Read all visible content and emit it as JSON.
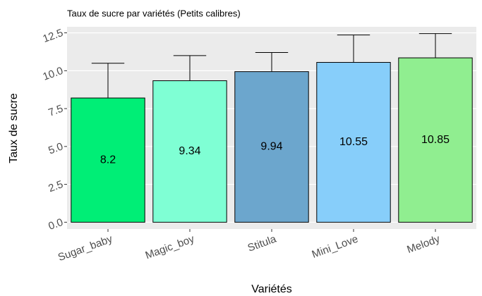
{
  "chart_data": {
    "type": "bar",
    "title": "Taux de sucre par variétés (Petits calibres)",
    "x_label": "Variétés",
    "y_label": "Taux de sucre",
    "categories": [
      "Sugar_baby",
      "Magic_boy",
      "Stitula",
      "Mini_Love",
      "Melody"
    ],
    "values": [
      8.2,
      9.34,
      9.94,
      10.55,
      10.85
    ],
    "errors": [
      2.29,
      1.66,
      1.26,
      1.81,
      1.6
    ],
    "colors": [
      "#00ee76",
      "#7fffd4",
      "#6ca6cd",
      "#87cefa",
      "#90ee90"
    ],
    "ylim": [
      -0.45,
      12.9
    ],
    "yticks": [
      {
        "value": 0,
        "label": "0.0"
      },
      {
        "value": 2.5,
        "label": "2.5"
      },
      {
        "value": 5,
        "label": "5.0"
      },
      {
        "value": 7.5,
        "label": "7.5"
      },
      {
        "value": 10,
        "label": "10.0"
      },
      {
        "value": 12.5,
        "label": "12.5"
      }
    ],
    "grid": true
  }
}
